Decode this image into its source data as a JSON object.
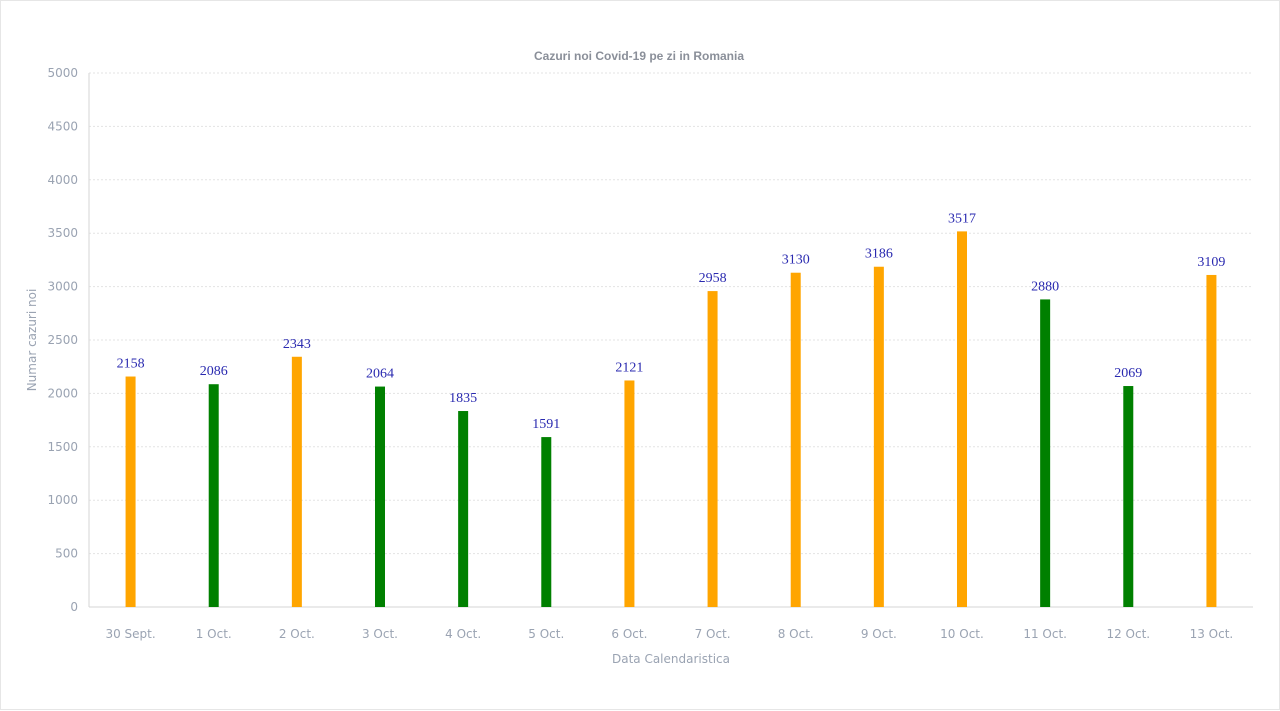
{
  "chart_data": {
    "type": "bar",
    "title": "Cazuri noi Covid-19 pe zi in Romania",
    "xlabel": "Data Calendaristica",
    "ylabel": "Numar cazuri noi",
    "ylim": [
      0,
      5000
    ],
    "yticks": [
      "0",
      "500",
      "1000",
      "1500",
      "2000",
      "2500",
      "3000",
      "3500",
      "4000",
      "4500",
      "5000"
    ],
    "grid": true,
    "categories": [
      "30 Sept.",
      "1 Oct.",
      "2 Oct.",
      "3 Oct.",
      "4 Oct.",
      "5 Oct.",
      "6 Oct.",
      "7 Oct.",
      "8 Oct.",
      "9 Oct.",
      "10 Oct.",
      "11 Oct.",
      "12 Oct.",
      "13 Oct."
    ],
    "values": [
      2158,
      2086,
      2343,
      2064,
      1835,
      1591,
      2121,
      2958,
      3130,
      3186,
      3517,
      2880,
      2069,
      3109
    ],
    "bar_colors": [
      "#ffa500",
      "#008000",
      "#ffa500",
      "#008000",
      "#008000",
      "#008000",
      "#ffa500",
      "#ffa500",
      "#ffa500",
      "#ffa500",
      "#ffa500",
      "#008000",
      "#008000",
      "#ffa500"
    ],
    "data_labels": [
      "2158",
      "2086",
      "2343",
      "2064",
      "1835",
      "1591",
      "2121",
      "2958",
      "3130",
      "3186",
      "3517",
      "2880",
      "2069",
      "3109"
    ]
  }
}
